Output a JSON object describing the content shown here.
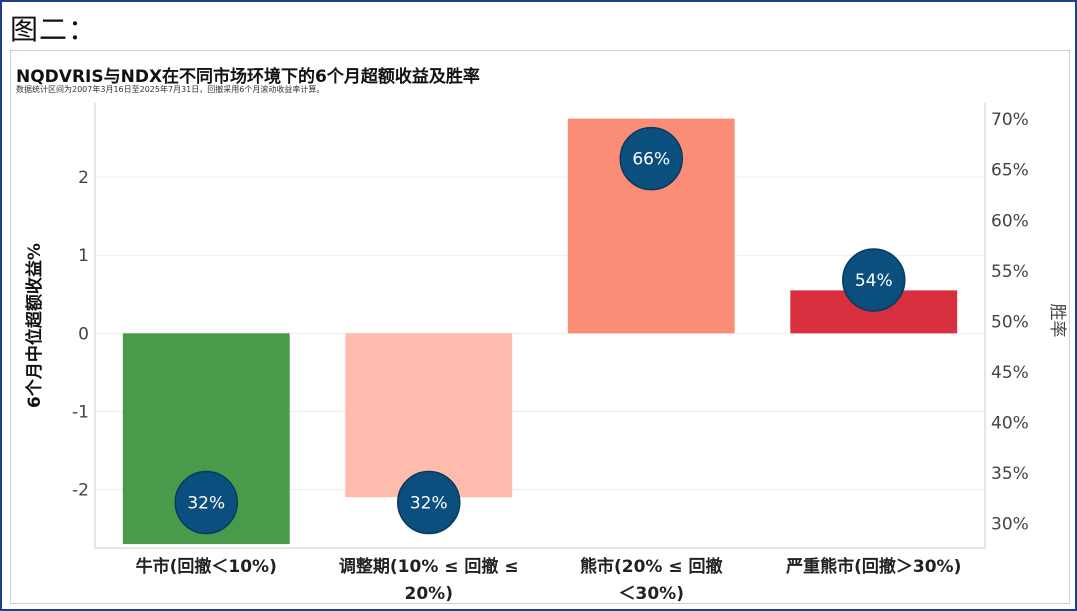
{
  "figure_label": "图二：",
  "chart_data": {
    "type": "bar",
    "title": "NQDVRIS与NDX在不同市场环境下的6个月超额收益及胜率",
    "subtitle": "数据统计区间为2007年3月16日至2025年7月31日，回撤采用6个月滚动收益率计算。",
    "ylabel": "6个月中位超额收益%",
    "y2label": "胜率",
    "ylim": [
      -2.75,
      2.95
    ],
    "y2lim": [
      27.5,
      71.5
    ],
    "yticks": [
      2,
      1,
      0,
      -1,
      -2
    ],
    "y2ticks": [
      70,
      65,
      60,
      55,
      50,
      45,
      40,
      35,
      30
    ],
    "y2tick_labels": [
      "70%",
      "65%",
      "60%",
      "55%",
      "50%",
      "45%",
      "40%",
      "35%",
      "30%"
    ],
    "categories": [
      "牛市(回撤＜10%)",
      "调整期(10% ≤ 回撤 ≤ 20%)",
      "熊市(20% ≤ 回撤＜30%)",
      "严重熊市(回撤＞30%)"
    ],
    "category_lines": [
      [
        "牛市(回撤＜10%)"
      ],
      [
        "调整期(10% ≤ 回撤 ≤",
        "20%)"
      ],
      [
        "熊市(20% ≤ 回撤",
        "＜30%)"
      ],
      [
        "严重熊市(回撤＞30%)"
      ]
    ],
    "series": [
      {
        "name": "6个月中位超额收益%",
        "values": [
          -2.7,
          -2.1,
          2.75,
          0.55
        ]
      },
      {
        "name": "胜率",
        "values": [
          32,
          32,
          66,
          54
        ],
        "labels": [
          "32%",
          "32%",
          "66%",
          "54%"
        ]
      }
    ],
    "colors": {
      "bars": [
        "#4a9a4c",
        "#ffbcad",
        "#fb8c76",
        "#d9303f"
      ],
      "circle_fill": "#0b4f7f",
      "circle_stroke": "#083a5e",
      "circle_text": "#ffffff",
      "grid": "#ececec",
      "axis": "#cccccc",
      "tick_text": "#444444",
      "category_text": "#222222"
    }
  }
}
